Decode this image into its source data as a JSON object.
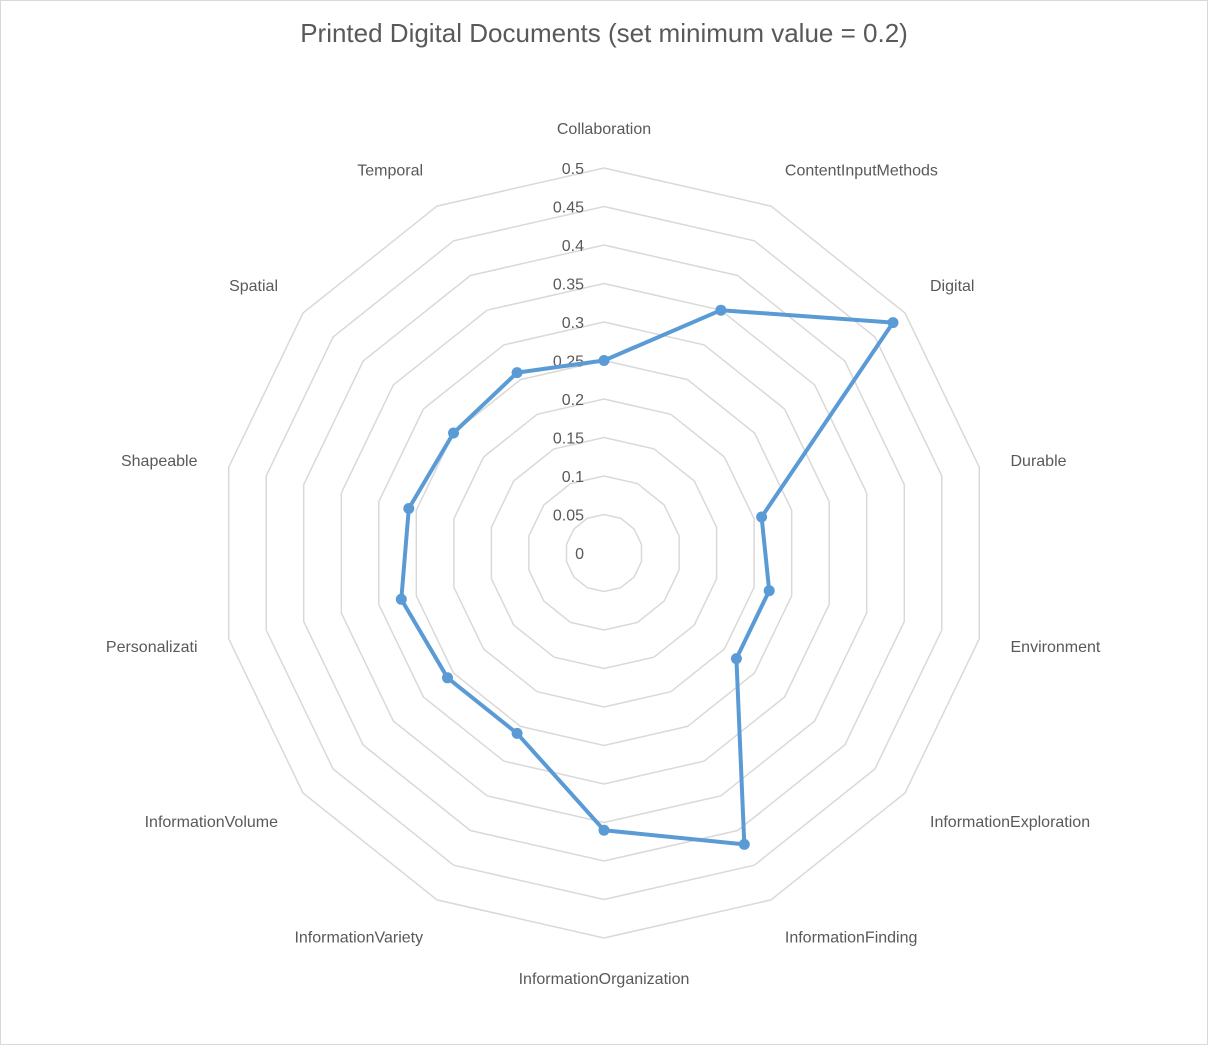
{
  "chart_data": {
    "type": "radar",
    "title": "Printed Digital Documents (set minimum value = 0.2)",
    "categories": [
      "Collaboration",
      "ContentInputMethods",
      "Digital",
      "Durable",
      "Environment",
      "InformationExploration",
      "InformationFinding",
      "InformationOrganization",
      "InformationVariety",
      "InformationVolume",
      "Personalizati",
      "Shapeable",
      "Spatial",
      "Temporal"
    ],
    "series": [
      {
        "values": [
          0.25,
          0.35,
          0.48,
          0.21,
          0.22,
          0.22,
          0.42,
          0.36,
          0.26,
          0.26,
          0.27,
          0.26,
          0.25,
          0.26
        ]
      }
    ],
    "rlim": [
      0,
      0.5
    ],
    "ticks": [
      "0",
      "0.05",
      "0.1",
      "0.15",
      "0.2",
      "0.25",
      "0.3",
      "0.35",
      "0.4",
      "0.45",
      "0.5"
    ],
    "grid": true,
    "legend": false,
    "colors": {
      "series": "#5b9bd5",
      "grid": "#d9d9d9",
      "text": "#595959"
    }
  }
}
